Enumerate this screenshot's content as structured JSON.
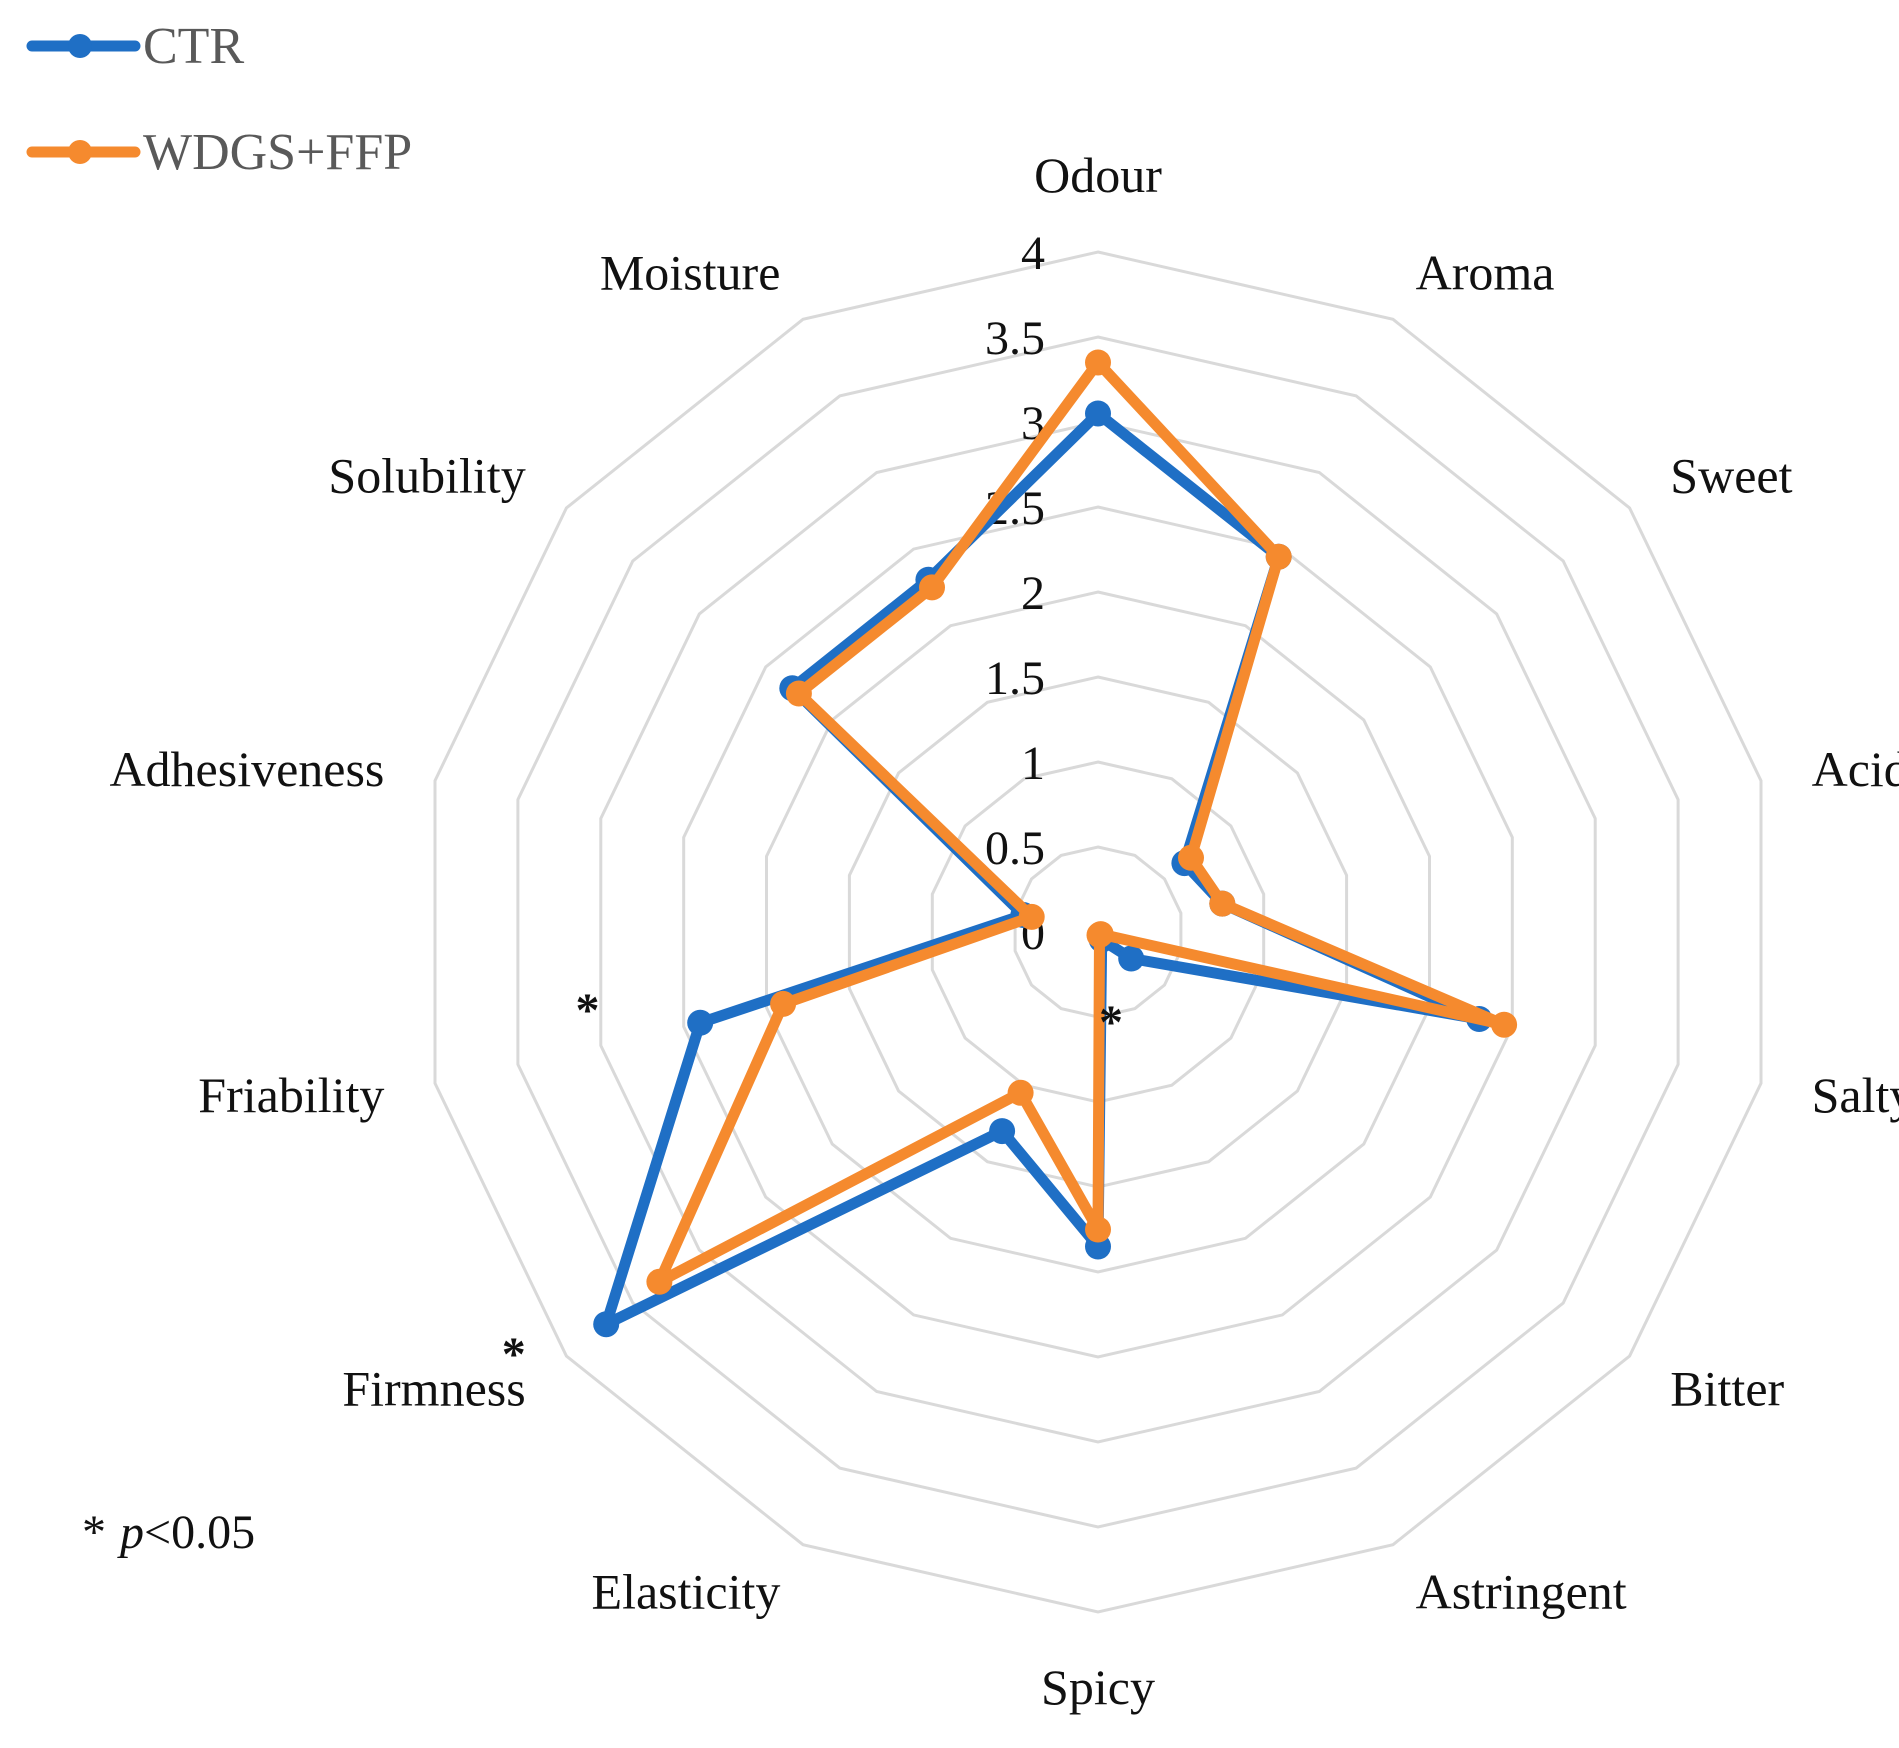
{
  "chart_data": {
    "type": "radar",
    "title": "",
    "categories": [
      "Odour",
      "Aroma",
      "Sweet",
      "Acidity",
      "Salty",
      "Bitter",
      "Astringent",
      "Spicy",
      "Elasticity",
      "Firmness",
      "Friability",
      "Adhesiveness",
      "Solubility",
      "Moisture"
    ],
    "r_ticks": [
      "0",
      "0.5",
      "1",
      "1.5",
      "2",
      "2.5",
      "3",
      "3.5",
      "4"
    ],
    "r_range": [
      0,
      4
    ],
    "grid": true,
    "legend_position": "top-left",
    "series": [
      {
        "name": "CTR",
        "color": "#1f6fc5",
        "values": [
          3.05,
          2.45,
          0.65,
          0.75,
          2.3,
          0.25,
          0.05,
          1.85,
          1.3,
          3.7,
          2.4,
          0.45,
          2.3,
          2.3
        ]
      },
      {
        "name": "WDGS+FFP",
        "color": "#f58a2e",
        "values": [
          3.35,
          2.45,
          0.7,
          0.75,
          2.45,
          0.02,
          0.02,
          1.75,
          1.05,
          3.3,
          1.9,
          0.4,
          2.25,
          2.25
        ]
      }
    ],
    "significance": {
      "marker": "*",
      "categories": [
        "Bitter",
        "Friability",
        "Firmness"
      ],
      "note_symbol": "*",
      "note_variable": "p",
      "note_condition": "<0.05"
    }
  }
}
